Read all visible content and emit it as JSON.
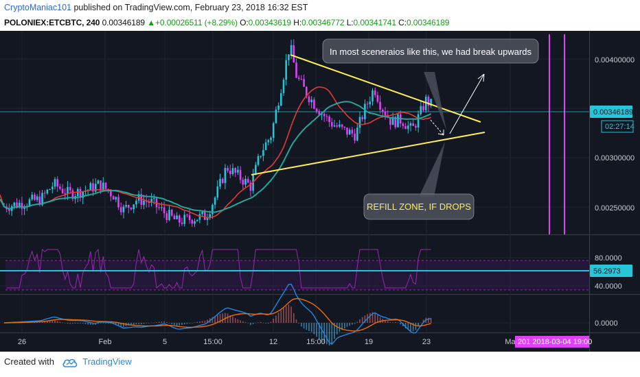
{
  "header": {
    "author": "CryptoManiac101",
    "published": " published on TradingView.com, February 23, 2018 16:32 EST"
  },
  "ticker": {
    "symbol": "POLONIEX:ETCBTC, 240",
    "price": "0.00346189",
    "change": "+0.00026511 (+8.29%)",
    "o_label": "O:",
    "o": "0.00343619",
    "h_label": "H:",
    "h": "0.00346772",
    "l_label": "L:",
    "l": "0.00341741",
    "c_label": "C:",
    "c": "0.00346189"
  },
  "annotations": {
    "top": "In most sceneraios like this, we had break upwards",
    "bottom": "REFILL ZONE, IF DROPS"
  },
  "price_axis": {
    "ticks": [
      "0.00400000",
      "0.00300000",
      "0.00250000"
    ],
    "current": "0.00346189",
    "countdown": "02:27:14"
  },
  "rsi_axis": {
    "ticks": [
      "80.0000",
      "40.0000"
    ],
    "current": "56.2973"
  },
  "macd_axis": {
    "ticks": [
      "0.0000"
    ]
  },
  "time_axis": {
    "ticks": [
      "26",
      "Feb",
      "5",
      "15:00",
      "12",
      "15:00",
      "19",
      "23",
      "Ma"
    ],
    "cursor": "201 2018-03-04 19:00"
  },
  "colors": {
    "bg": "#131722",
    "up": "#26c6da",
    "down": "#e040fb",
    "ma_red": "#e53935",
    "ma_teal": "#26a69a",
    "trend": "#ffee58",
    "cursor": "#e040fb"
  },
  "chart_data": {
    "type": "candlestick",
    "series": [
      {
        "name": "price",
        "note": "approximate OHLC path"
      }
    ],
    "ylim": [
      0.00225,
      0.00415
    ],
    "rsi_ylim": [
      20,
      95
    ]
  },
  "footer": {
    "created": "Created with",
    "brand": "TradingView"
  }
}
